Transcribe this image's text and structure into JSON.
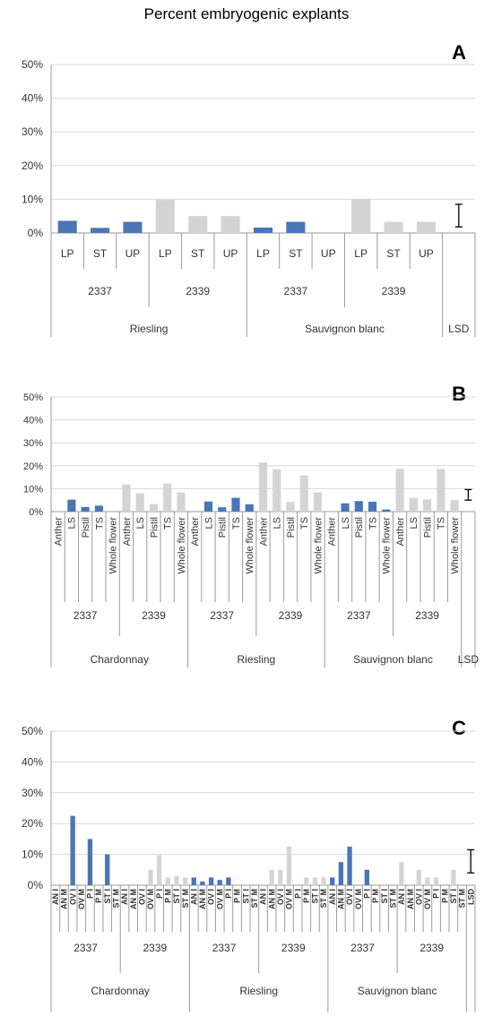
{
  "title": "Percent embryogenic explants",
  "colors": {
    "primary": "#4a76b8",
    "secondary": "#d4d4d4",
    "axis": "#9a9a9a",
    "grid": "#d9d9d9"
  },
  "chart_data": [
    {
      "type": "bar",
      "panel_label": "A",
      "title": "",
      "xlabel": "",
      "ylabel": "",
      "ylim": [
        0,
        50
      ],
      "yticks": [
        "0%",
        "10%",
        "20%",
        "30%",
        "40%",
        "50%"
      ],
      "gridlines": true,
      "categories": [
        "LP",
        "ST",
        "UP",
        "LP",
        "ST",
        "UP",
        "LP",
        "ST",
        "UP",
        "LP",
        "ST",
        "UP"
      ],
      "clones": [
        "2337",
        "2337",
        "2337",
        "2339",
        "2339",
        "2339",
        "2337",
        "2337",
        "2337",
        "2339",
        "2339",
        "2339"
      ],
      "values": [
        3.6,
        1.5,
        3.3,
        9.8,
        5.0,
        5.0,
        1.6,
        3.3,
        0,
        10.1,
        3.3,
        3.3
      ],
      "bar_colors": [
        "primary",
        "primary",
        "primary",
        "secondary",
        "secondary",
        "secondary",
        "primary",
        "primary",
        "primary",
        "secondary",
        "secondary",
        "secondary"
      ],
      "groups_level2": [
        "2337",
        "2339",
        "2337",
        "2339"
      ],
      "groups_level3": [
        "Riesling",
        "Sauvignon blanc"
      ],
      "lsd": {
        "label": "LSD",
        "low": 1.8,
        "high": 8.5
      }
    },
    {
      "type": "bar",
      "panel_label": "B",
      "title": "",
      "xlabel": "",
      "ylabel": "",
      "ylim": [
        0,
        50
      ],
      "yticks": [
        "0%",
        "10%",
        "20%",
        "30%",
        "40%",
        "50%"
      ],
      "gridlines": true,
      "categories": [
        "Anther",
        "LS",
        "Pistil",
        "TS",
        "Whole flower",
        "Anther",
        "LS",
        "Pistil",
        "TS",
        "Whole flower",
        "Anther",
        "LS",
        "Pistil",
        "TS",
        "Whole flower",
        "Anther",
        "LS",
        "Pistil",
        "TS",
        "Whole flower",
        "Anther",
        "LS",
        "Pistil",
        "TS",
        "Whole flower",
        "Anther",
        "LS",
        "Pistil",
        "TS",
        "Whole flower"
      ],
      "values": [
        0,
        5.2,
        2.0,
        2.6,
        0,
        11.8,
        8.0,
        3.3,
        12.2,
        8.4,
        0,
        4.4,
        1.9,
        6.0,
        3.2,
        21.4,
        18.5,
        4.2,
        15.7,
        8.4,
        0,
        3.6,
        4.6,
        4.3,
        0.9,
        18.6,
        6.0,
        5.3,
        18.6,
        5.0
      ],
      "bar_colors": [
        "primary",
        "primary",
        "primary",
        "primary",
        "primary",
        "secondary",
        "secondary",
        "secondary",
        "secondary",
        "secondary",
        "primary",
        "primary",
        "primary",
        "primary",
        "primary",
        "secondary",
        "secondary",
        "secondary",
        "secondary",
        "secondary",
        "primary",
        "primary",
        "primary",
        "primary",
        "primary",
        "secondary",
        "secondary",
        "secondary",
        "secondary",
        "secondary"
      ],
      "groups_level2": [
        "2337",
        "2339",
        "2337",
        "2339",
        "2337",
        "2339"
      ],
      "groups_level3": [
        "Chardonnay",
        "Riesling",
        "Sauvignon blanc"
      ],
      "lsd": {
        "label": "LSD",
        "low": 5.0,
        "high": 9.6
      }
    },
    {
      "type": "bar",
      "panel_label": "C",
      "title": "",
      "xlabel": "",
      "ylabel": "",
      "ylim": [
        0,
        50
      ],
      "yticks": [
        "0%",
        "10%",
        "20%",
        "30%",
        "40%",
        "50%"
      ],
      "gridlines": true,
      "categories": [
        "AN I",
        "AN M",
        "OV I",
        "OV M",
        "P I",
        "P M",
        "ST I",
        "ST M",
        "AN I",
        "AN M",
        "OV I",
        "OV M",
        "P I",
        "P M",
        "ST I",
        "ST M",
        "AN I",
        "AN M",
        "OV I",
        "OV M",
        "P I",
        "P M",
        "ST I",
        "ST M",
        "AN I",
        "AN M",
        "OV I",
        "OV M",
        "P I",
        "P M",
        "ST I",
        "ST M",
        "AN I",
        "AN M",
        "OV I",
        "OV M",
        "P I",
        "P M",
        "ST I",
        "ST M",
        "AN I",
        "AN M",
        "OV I",
        "OV M",
        "P I",
        "P M",
        "ST I",
        "ST M"
      ],
      "values": [
        0,
        0,
        22.5,
        0,
        15.0,
        0,
        10.0,
        0,
        0,
        0,
        0,
        5.0,
        9.7,
        2.5,
        3.0,
        2.5,
        2.5,
        1.2,
        2.5,
        1.7,
        2.5,
        0,
        0,
        0,
        0,
        5.0,
        5.0,
        12.5,
        0,
        2.5,
        2.5,
        2.5,
        2.5,
        7.5,
        12.5,
        0,
        5.0,
        0,
        0,
        0,
        7.5,
        0,
        5.0,
        2.5,
        2.5,
        0,
        5.0,
        0
      ],
      "bar_colors": [
        "primary",
        "primary",
        "primary",
        "primary",
        "primary",
        "primary",
        "primary",
        "primary",
        "secondary",
        "secondary",
        "secondary",
        "secondary",
        "secondary",
        "secondary",
        "secondary",
        "secondary",
        "primary",
        "primary",
        "primary",
        "primary",
        "primary",
        "primary",
        "primary",
        "primary",
        "secondary",
        "secondary",
        "secondary",
        "secondary",
        "secondary",
        "secondary",
        "secondary",
        "secondary",
        "primary",
        "primary",
        "primary",
        "primary",
        "primary",
        "primary",
        "primary",
        "primary",
        "secondary",
        "secondary",
        "secondary",
        "secondary",
        "secondary",
        "secondary",
        "secondary",
        "secondary"
      ],
      "groups_level2": [
        "2337",
        "2339",
        "2337",
        "2339",
        "2337",
        "2339"
      ],
      "groups_level3": [
        "Chardonnay",
        "Riesling",
        "Sauvignon blanc"
      ],
      "lsd": {
        "label": "LSD",
        "low": 4.0,
        "high": 11.5
      }
    }
  ]
}
